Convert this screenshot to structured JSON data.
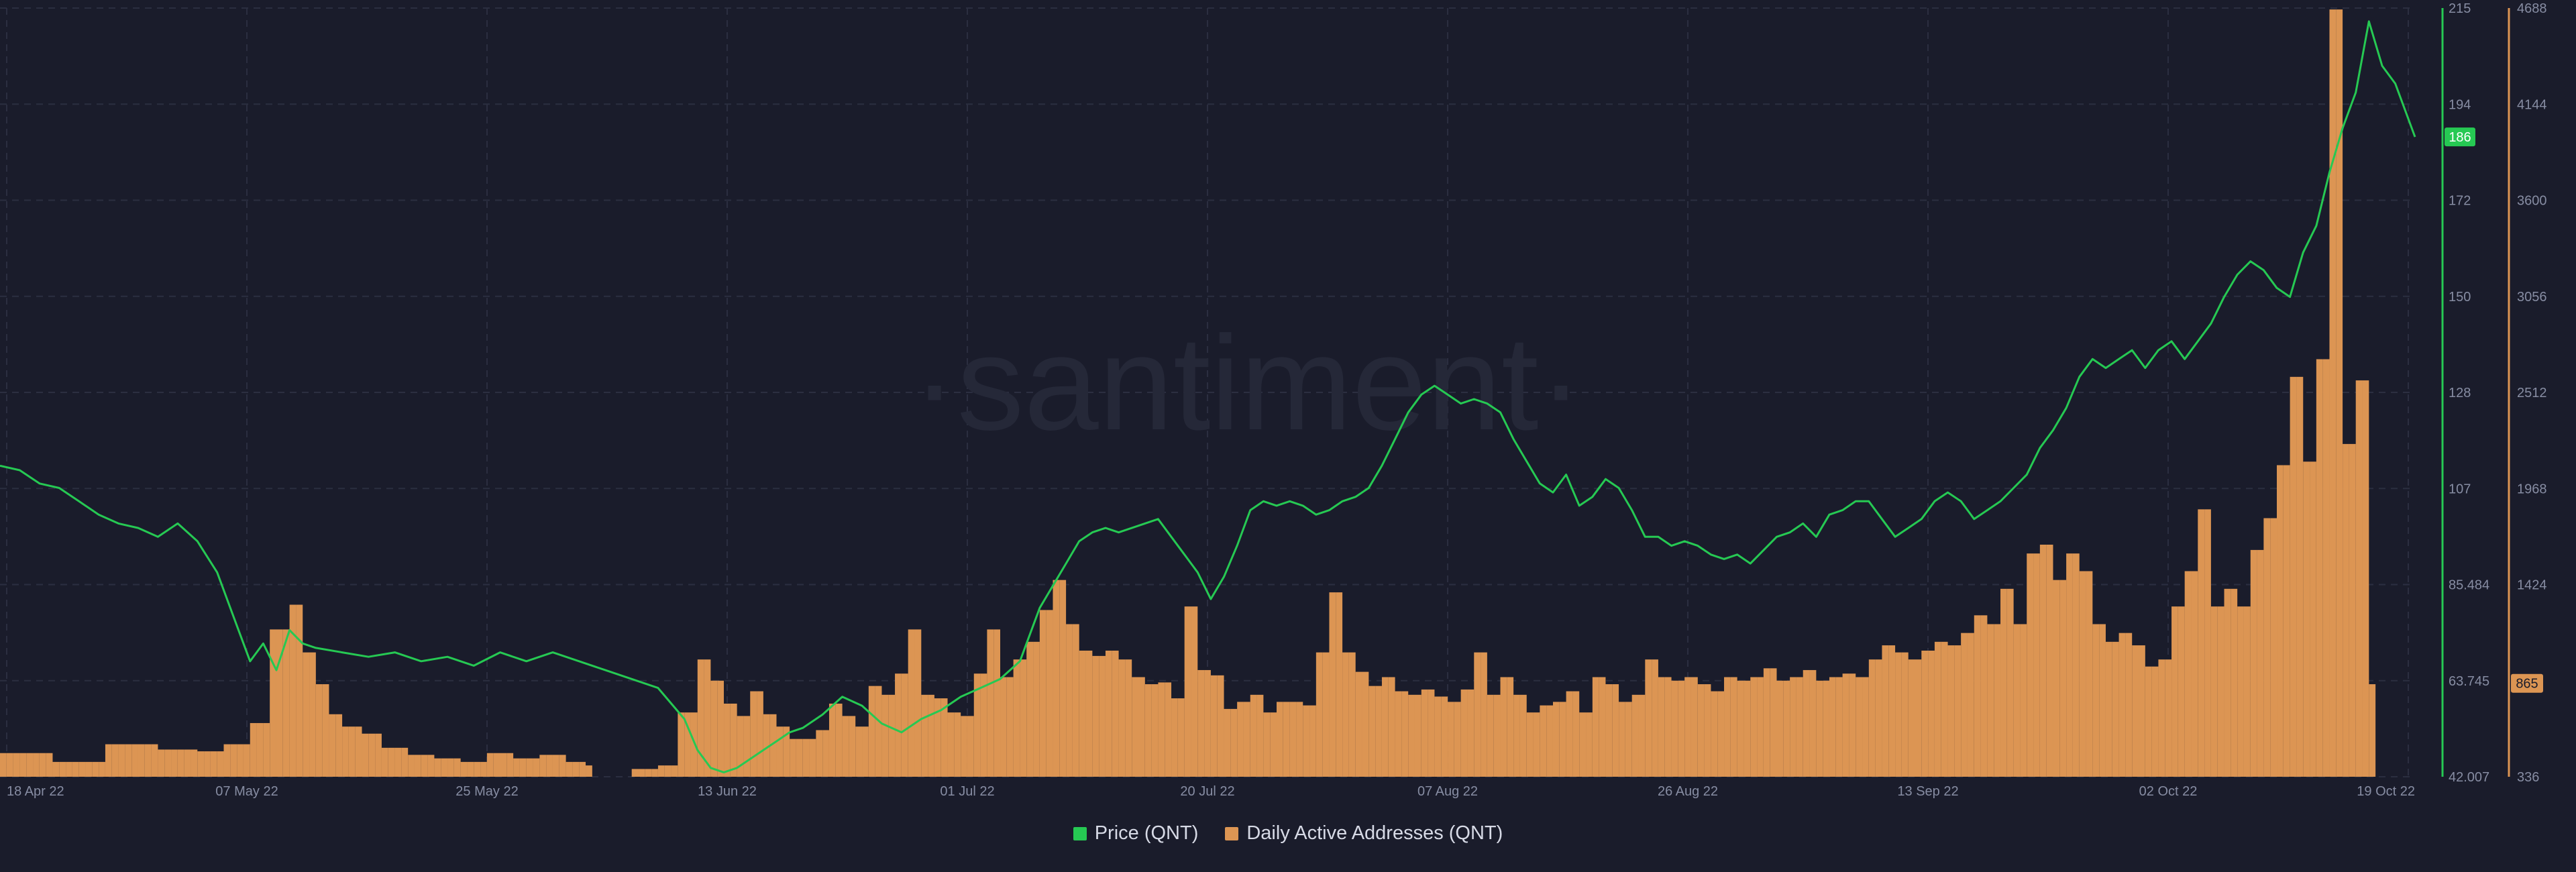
{
  "watermark": "·santiment·",
  "colors": {
    "background": "#1a1c2b",
    "price": "#26c953",
    "active_addresses": "#dc9553",
    "grid": "#2b2e40",
    "axis_text": "#878da3"
  },
  "legend": {
    "price_label": "Price (QNT)",
    "addresses_label": "Daily Active Addresses (QNT)"
  },
  "chart_data": {
    "type": "bar",
    "x_ticks": [
      "18 Apr 22",
      "07 May 22",
      "25 May 22",
      "13 Jun 22",
      "01 Jul 22",
      "20 Jul 22",
      "07 Aug 22",
      "26 Aug 22",
      "13 Sep 22",
      "02 Oct 22",
      "19 Oct 22"
    ],
    "x_start": "18 Apr 22",
    "x_end": "19 Oct 22",
    "price_axis": {
      "label": "Price (QNT)",
      "ticks": [
        "215",
        "194",
        "172",
        "150",
        "128",
        "107",
        "85.484",
        "63.745",
        "42.007"
      ],
      "ylim": [
        42.007,
        215
      ],
      "current_value": "186"
    },
    "addresses_axis": {
      "label": "Daily Active Addresses (QNT)",
      "ticks": [
        "4688",
        "4144",
        "3600",
        "3056",
        "2512",
        "1968",
        "1424",
        "865",
        "336"
      ],
      "ylim": [
        336,
        4688
      ],
      "current_value": "865"
    },
    "series": [
      {
        "name": "Price (QNT)",
        "type": "line",
        "axis": "left",
        "points": [
          [
            0,
            112
          ],
          [
            3,
            111
          ],
          [
            6,
            108
          ],
          [
            9,
            107
          ],
          [
            12,
            104
          ],
          [
            15,
            101
          ],
          [
            18,
            99
          ],
          [
            21,
            98
          ],
          [
            24,
            96
          ],
          [
            27,
            99
          ],
          [
            30,
            95
          ],
          [
            33,
            88
          ],
          [
            36,
            76
          ],
          [
            38,
            68
          ],
          [
            40,
            72
          ],
          [
            42,
            66
          ],
          [
            44,
            75
          ],
          [
            46,
            72
          ],
          [
            48,
            71
          ],
          [
            52,
            70
          ],
          [
            56,
            69
          ],
          [
            60,
            70
          ],
          [
            64,
            68
          ],
          [
            68,
            69
          ],
          [
            72,
            67
          ],
          [
            76,
            70
          ],
          [
            80,
            68
          ],
          [
            84,
            70
          ],
          [
            88,
            68
          ],
          [
            92,
            66
          ],
          [
            96,
            64
          ],
          [
            100,
            62
          ],
          [
            104,
            55
          ],
          [
            106,
            48
          ],
          [
            108,
            44
          ],
          [
            110,
            43
          ],
          [
            112,
            44
          ],
          [
            114,
            46
          ],
          [
            116,
            48
          ],
          [
            118,
            50
          ],
          [
            120,
            52
          ],
          [
            122,
            53
          ],
          [
            125,
            56
          ],
          [
            128,
            60
          ],
          [
            131,
            58
          ],
          [
            134,
            54
          ],
          [
            137,
            52
          ],
          [
            140,
            55
          ],
          [
            143,
            57
          ],
          [
            146,
            60
          ],
          [
            149,
            62
          ],
          [
            152,
            64
          ],
          [
            155,
            68
          ],
          [
            158,
            80
          ],
          [
            160,
            85
          ],
          [
            162,
            90
          ],
          [
            164,
            95
          ],
          [
            166,
            97
          ],
          [
            168,
            98
          ],
          [
            170,
            97
          ],
          [
            172,
            98
          ],
          [
            174,
            99
          ],
          [
            176,
            100
          ],
          [
            178,
            96
          ],
          [
            180,
            92
          ],
          [
            182,
            88
          ],
          [
            184,
            82
          ],
          [
            186,
            87
          ],
          [
            188,
            94
          ],
          [
            190,
            102
          ],
          [
            192,
            104
          ],
          [
            194,
            103
          ],
          [
            196,
            104
          ],
          [
            198,
            103
          ],
          [
            200,
            101
          ],
          [
            202,
            102
          ],
          [
            204,
            104
          ],
          [
            206,
            105
          ],
          [
            208,
            107
          ],
          [
            210,
            112
          ],
          [
            212,
            118
          ],
          [
            214,
            124
          ],
          [
            216,
            128
          ],
          [
            218,
            130
          ],
          [
            220,
            128
          ],
          [
            222,
            126
          ],
          [
            224,
            127
          ],
          [
            226,
            126
          ],
          [
            228,
            124
          ],
          [
            230,
            118
          ],
          [
            232,
            113
          ],
          [
            234,
            108
          ],
          [
            236,
            106
          ],
          [
            238,
            110
          ],
          [
            240,
            103
          ],
          [
            242,
            105
          ],
          [
            244,
            109
          ],
          [
            246,
            107
          ],
          [
            248,
            102
          ],
          [
            250,
            96
          ],
          [
            252,
            96
          ],
          [
            254,
            94
          ],
          [
            256,
            95
          ],
          [
            258,
            94
          ],
          [
            260,
            92
          ],
          [
            262,
            91
          ],
          [
            264,
            92
          ],
          [
            266,
            90
          ],
          [
            268,
            93
          ],
          [
            270,
            96
          ],
          [
            272,
            97
          ],
          [
            274,
            99
          ],
          [
            276,
            96
          ],
          [
            278,
            101
          ],
          [
            280,
            102
          ],
          [
            282,
            104
          ],
          [
            284,
            104
          ],
          [
            286,
            100
          ],
          [
            288,
            96
          ],
          [
            290,
            98
          ],
          [
            292,
            100
          ],
          [
            294,
            104
          ],
          [
            296,
            106
          ],
          [
            298,
            104
          ],
          [
            300,
            100
          ],
          [
            302,
            102
          ],
          [
            304,
            104
          ],
          [
            306,
            107
          ],
          [
            308,
            110
          ],
          [
            310,
            116
          ],
          [
            312,
            120
          ],
          [
            314,
            125
          ],
          [
            316,
            132
          ],
          [
            318,
            136
          ],
          [
            320,
            134
          ],
          [
            322,
            136
          ],
          [
            324,
            138
          ],
          [
            326,
            134
          ],
          [
            328,
            138
          ],
          [
            330,
            140
          ],
          [
            332,
            136
          ],
          [
            334,
            140
          ],
          [
            336,
            144
          ],
          [
            338,
            150
          ],
          [
            340,
            155
          ],
          [
            342,
            158
          ],
          [
            344,
            156
          ],
          [
            346,
            152
          ],
          [
            348,
            150
          ],
          [
            350,
            160
          ],
          [
            352,
            166
          ],
          [
            354,
            178
          ],
          [
            356,
            188
          ],
          [
            358,
            196
          ],
          [
            360,
            212
          ],
          [
            362,
            202
          ],
          [
            364,
            198
          ],
          [
            366,
            190
          ],
          [
            367,
            186
          ]
        ]
      },
      {
        "name": "Daily Active Addresses (QNT)",
        "type": "bar",
        "axis": "right",
        "points": [
          [
            0,
            470
          ],
          [
            8,
            420
          ],
          [
            16,
            520
          ],
          [
            24,
            490
          ],
          [
            30,
            480
          ],
          [
            34,
            520
          ],
          [
            38,
            640
          ],
          [
            41,
            1170
          ],
          [
            44,
            1310
          ],
          [
            46,
            1040
          ],
          [
            48,
            860
          ],
          [
            50,
            690
          ],
          [
            52,
            620
          ],
          [
            55,
            580
          ],
          [
            58,
            500
          ],
          [
            62,
            460
          ],
          [
            66,
            440
          ],
          [
            70,
            420
          ],
          [
            74,
            470
          ],
          [
            78,
            440
          ],
          [
            82,
            460
          ],
          [
            86,
            420
          ],
          [
            89,
            400
          ],
          [
            90,
            300
          ],
          [
            94,
            320
          ],
          [
            96,
            380
          ],
          [
            100,
            400
          ],
          [
            103,
            700
          ],
          [
            106,
            1000
          ],
          [
            108,
            880
          ],
          [
            110,
            750
          ],
          [
            112,
            680
          ],
          [
            114,
            820
          ],
          [
            116,
            690
          ],
          [
            118,
            620
          ],
          [
            120,
            550
          ],
          [
            124,
            600
          ],
          [
            126,
            750
          ],
          [
            128,
            680
          ],
          [
            130,
            620
          ],
          [
            132,
            850
          ],
          [
            134,
            800
          ],
          [
            136,
            920
          ],
          [
            138,
            1170
          ],
          [
            140,
            800
          ],
          [
            142,
            780
          ],
          [
            144,
            700
          ],
          [
            146,
            680
          ],
          [
            148,
            920
          ],
          [
            150,
            1170
          ],
          [
            152,
            900
          ],
          [
            154,
            1000
          ],
          [
            156,
            1100
          ],
          [
            158,
            1280
          ],
          [
            160,
            1450
          ],
          [
            162,
            1200
          ],
          [
            164,
            1050
          ],
          [
            166,
            1020
          ],
          [
            168,
            1050
          ],
          [
            170,
            1000
          ],
          [
            172,
            900
          ],
          [
            174,
            860
          ],
          [
            176,
            870
          ],
          [
            178,
            780
          ],
          [
            180,
            1300
          ],
          [
            182,
            940
          ],
          [
            184,
            910
          ],
          [
            186,
            720
          ],
          [
            188,
            760
          ],
          [
            190,
            800
          ],
          [
            192,
            700
          ],
          [
            194,
            760
          ],
          [
            196,
            760
          ],
          [
            198,
            740
          ],
          [
            200,
            1040
          ],
          [
            202,
            1380
          ],
          [
            204,
            1040
          ],
          [
            206,
            930
          ],
          [
            208,
            850
          ],
          [
            210,
            900
          ],
          [
            212,
            820
          ],
          [
            214,
            800
          ],
          [
            216,
            830
          ],
          [
            218,
            790
          ],
          [
            220,
            760
          ],
          [
            222,
            830
          ],
          [
            224,
            1040
          ],
          [
            226,
            800
          ],
          [
            228,
            900
          ],
          [
            230,
            800
          ],
          [
            232,
            700
          ],
          [
            234,
            740
          ],
          [
            236,
            760
          ],
          [
            238,
            820
          ],
          [
            240,
            700
          ],
          [
            242,
            900
          ],
          [
            244,
            860
          ],
          [
            246,
            760
          ],
          [
            248,
            800
          ],
          [
            250,
            1000
          ],
          [
            252,
            900
          ],
          [
            254,
            880
          ],
          [
            256,
            900
          ],
          [
            258,
            860
          ],
          [
            260,
            820
          ],
          [
            262,
            900
          ],
          [
            264,
            880
          ],
          [
            266,
            900
          ],
          [
            268,
            950
          ],
          [
            270,
            880
          ],
          [
            272,
            900
          ],
          [
            274,
            940
          ],
          [
            276,
            880
          ],
          [
            278,
            900
          ],
          [
            280,
            920
          ],
          [
            282,
            900
          ],
          [
            284,
            1000
          ],
          [
            286,
            1080
          ],
          [
            288,
            1040
          ],
          [
            290,
            1000
          ],
          [
            292,
            1050
          ],
          [
            294,
            1100
          ],
          [
            296,
            1080
          ],
          [
            298,
            1150
          ],
          [
            300,
            1250
          ],
          [
            302,
            1200
          ],
          [
            304,
            1400
          ],
          [
            306,
            1200
          ],
          [
            308,
            1600
          ],
          [
            310,
            1650
          ],
          [
            312,
            1450
          ],
          [
            314,
            1600
          ],
          [
            316,
            1500
          ],
          [
            318,
            1200
          ],
          [
            320,
            1100
          ],
          [
            322,
            1150
          ],
          [
            324,
            1080
          ],
          [
            326,
            960
          ],
          [
            328,
            1000
          ],
          [
            330,
            1300
          ],
          [
            332,
            1500
          ],
          [
            334,
            1850
          ],
          [
            336,
            1300
          ],
          [
            338,
            1400
          ],
          [
            340,
            1300
          ],
          [
            342,
            1620
          ],
          [
            344,
            1800
          ],
          [
            346,
            2100
          ],
          [
            348,
            2600
          ],
          [
            350,
            2120
          ],
          [
            352,
            2700
          ],
          [
            354,
            4680
          ],
          [
            356,
            2220
          ],
          [
            358,
            2580
          ],
          [
            360,
            860
          ]
        ]
      }
    ]
  }
}
